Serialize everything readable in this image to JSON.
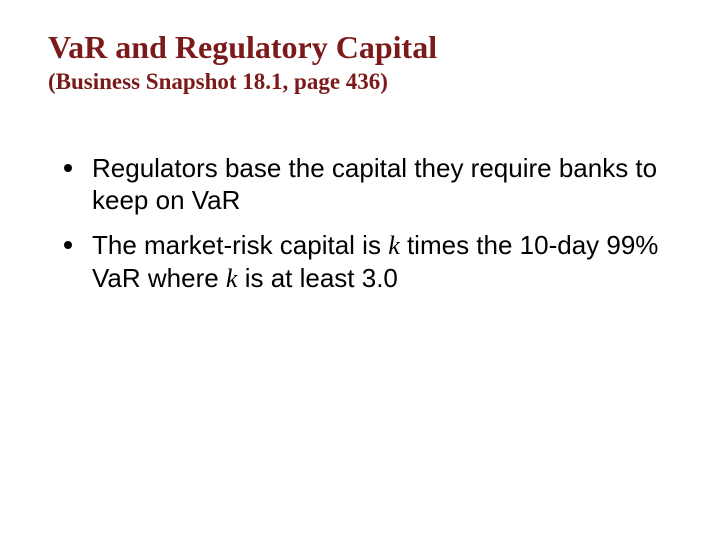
{
  "colors": {
    "title": "#7b1a1a",
    "bullet_dot": "#000000",
    "text": "#000000",
    "background": "#ffffff"
  },
  "title": {
    "main": "VaR and Regulatory Capital",
    "sub": "(Business Snapshot 18.1, page 436)",
    "main_fontsize": 32,
    "sub_fontsize": 23,
    "font_family": "Times New Roman"
  },
  "bullets": [
    {
      "text": "Regulators base the capital they require banks to keep on VaR"
    },
    {
      "prefix": "The market-risk capital is ",
      "k1": "k",
      "mid": " times the 10-day 99% VaR where ",
      "k2": "k",
      "suffix": " is at least 3.0"
    }
  ],
  "bullet_fontsize": 26
}
